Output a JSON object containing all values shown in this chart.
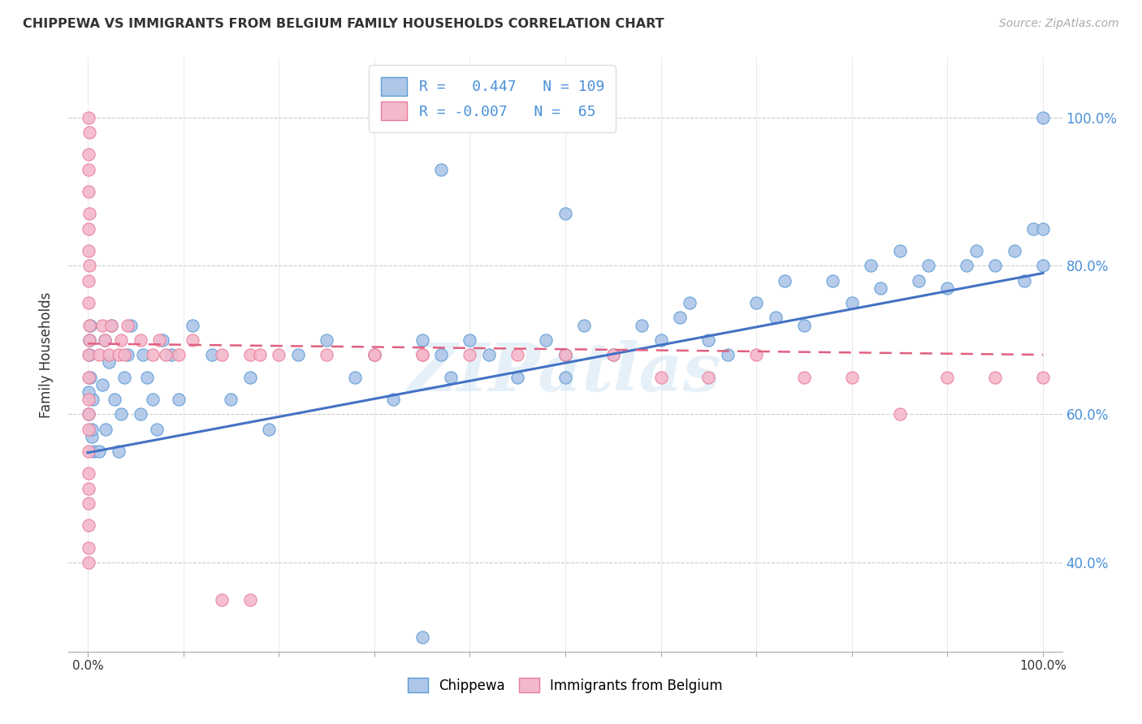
{
  "title": "CHIPPEWA VS IMMIGRANTS FROM BELGIUM FAMILY HOUSEHOLDS CORRELATION CHART",
  "source": "Source: ZipAtlas.com",
  "ylabel": "Family Households",
  "xlim": [
    -0.02,
    1.02
  ],
  "ylim": [
    0.28,
    1.08
  ],
  "blue_R": "0.447",
  "blue_N": "109",
  "pink_R": "-0.007",
  "pink_N": "65",
  "blue_color": "#aec6e8",
  "pink_color": "#f4b8cb",
  "blue_edge_color": "#5b9bd5",
  "pink_edge_color": "#e87d9a",
  "blue_line_color": "#4472c4",
  "pink_line_color": "#e06080",
  "watermark": "ZIPatlas",
  "ytick_vals": [
    0.4,
    0.6,
    0.8,
    1.0
  ],
  "ytick_labels": [
    "40.0%",
    "60.0%",
    "80.0%",
    "100.0%"
  ],
  "blue_line_x0": 0.0,
  "blue_line_x1": 1.0,
  "blue_line_y0": 0.548,
  "blue_line_y1": 0.79,
  "pink_line_x0": 0.0,
  "pink_line_x1": 1.0,
  "pink_line_y0": 0.695,
  "pink_line_y1": 0.68,
  "blue_pts_x": [
    0.005,
    0.003,
    0.002,
    0.001,
    0.004,
    0.006,
    0.002,
    0.003,
    0.001,
    0.004,
    0.015,
    0.018,
    0.012,
    0.022,
    0.025,
    0.019,
    0.028,
    0.035,
    0.038,
    0.032,
    0.042,
    0.045,
    0.055,
    0.058,
    0.062,
    0.068,
    0.072,
    0.078,
    0.088,
    0.095,
    0.11,
    0.13,
    0.15,
    0.17,
    0.19,
    0.22,
    0.25,
    0.28,
    0.3,
    0.32,
    0.35,
    0.37,
    0.38,
    0.4,
    0.42,
    0.45,
    0.48,
    0.5,
    0.52,
    0.5,
    0.5,
    0.55,
    0.58,
    0.6,
    0.62,
    0.63,
    0.65,
    0.67,
    0.7,
    0.72,
    0.73,
    0.75,
    0.78,
    0.8,
    0.82,
    0.83,
    0.85,
    0.87,
    0.88,
    0.9,
    0.92,
    0.93,
    0.95,
    0.97,
    0.98,
    0.99,
    1.0,
    1.0,
    1.0,
    0.37,
    0.5,
    0.35
  ],
  "blue_pts_y": [
    0.62,
    0.65,
    0.68,
    0.6,
    0.57,
    0.55,
    0.7,
    0.72,
    0.63,
    0.58,
    0.64,
    0.7,
    0.55,
    0.67,
    0.72,
    0.58,
    0.62,
    0.6,
    0.65,
    0.55,
    0.68,
    0.72,
    0.6,
    0.68,
    0.65,
    0.62,
    0.58,
    0.7,
    0.68,
    0.62,
    0.72,
    0.68,
    0.62,
    0.65,
    0.58,
    0.68,
    0.7,
    0.65,
    0.68,
    0.62,
    0.7,
    0.68,
    0.65,
    0.7,
    0.68,
    0.65,
    0.7,
    0.68,
    0.72,
    0.65,
    0.68,
    0.68,
    0.72,
    0.7,
    0.73,
    0.75,
    0.7,
    0.68,
    0.75,
    0.73,
    0.78,
    0.72,
    0.78,
    0.75,
    0.8,
    0.77,
    0.82,
    0.78,
    0.8,
    0.77,
    0.8,
    0.82,
    0.8,
    0.82,
    0.78,
    0.85,
    0.8,
    0.85,
    1.0,
    0.93,
    0.87,
    0.3
  ],
  "pink_pts_x": [
    0.001,
    0.002,
    0.001,
    0.001,
    0.002,
    0.001,
    0.001,
    0.002,
    0.001,
    0.001,
    0.001,
    0.002,
    0.001,
    0.001,
    0.002,
    0.001,
    0.001,
    0.001,
    0.001,
    0.001,
    0.001,
    0.001,
    0.001,
    0.001,
    0.001,
    0.012,
    0.015,
    0.018,
    0.022,
    0.025,
    0.032,
    0.035,
    0.038,
    0.042,
    0.055,
    0.068,
    0.075,
    0.082,
    0.095,
    0.11,
    0.14,
    0.17,
    0.2,
    0.25,
    0.3,
    0.35,
    0.4,
    0.45,
    0.5,
    0.55,
    0.6,
    0.65,
    0.7,
    0.75,
    0.8,
    0.85,
    0.9,
    0.95,
    1.0,
    0.14,
    0.17,
    0.18,
    0.3,
    0.35
  ],
  "pink_pts_y": [
    0.68,
    0.72,
    0.75,
    0.78,
    0.8,
    0.82,
    0.85,
    0.87,
    0.9,
    0.93,
    0.95,
    0.98,
    1.0,
    0.65,
    0.7,
    0.62,
    0.6,
    0.58,
    0.55,
    0.52,
    0.5,
    0.48,
    0.45,
    0.42,
    0.4,
    0.68,
    0.72,
    0.7,
    0.68,
    0.72,
    0.68,
    0.7,
    0.68,
    0.72,
    0.7,
    0.68,
    0.7,
    0.68,
    0.68,
    0.7,
    0.35,
    0.35,
    0.68,
    0.68,
    0.68,
    0.68,
    0.68,
    0.68,
    0.68,
    0.68,
    0.65,
    0.65,
    0.68,
    0.65,
    0.65,
    0.6,
    0.65,
    0.65,
    0.65,
    0.68,
    0.68,
    0.68,
    0.68,
    0.68
  ]
}
